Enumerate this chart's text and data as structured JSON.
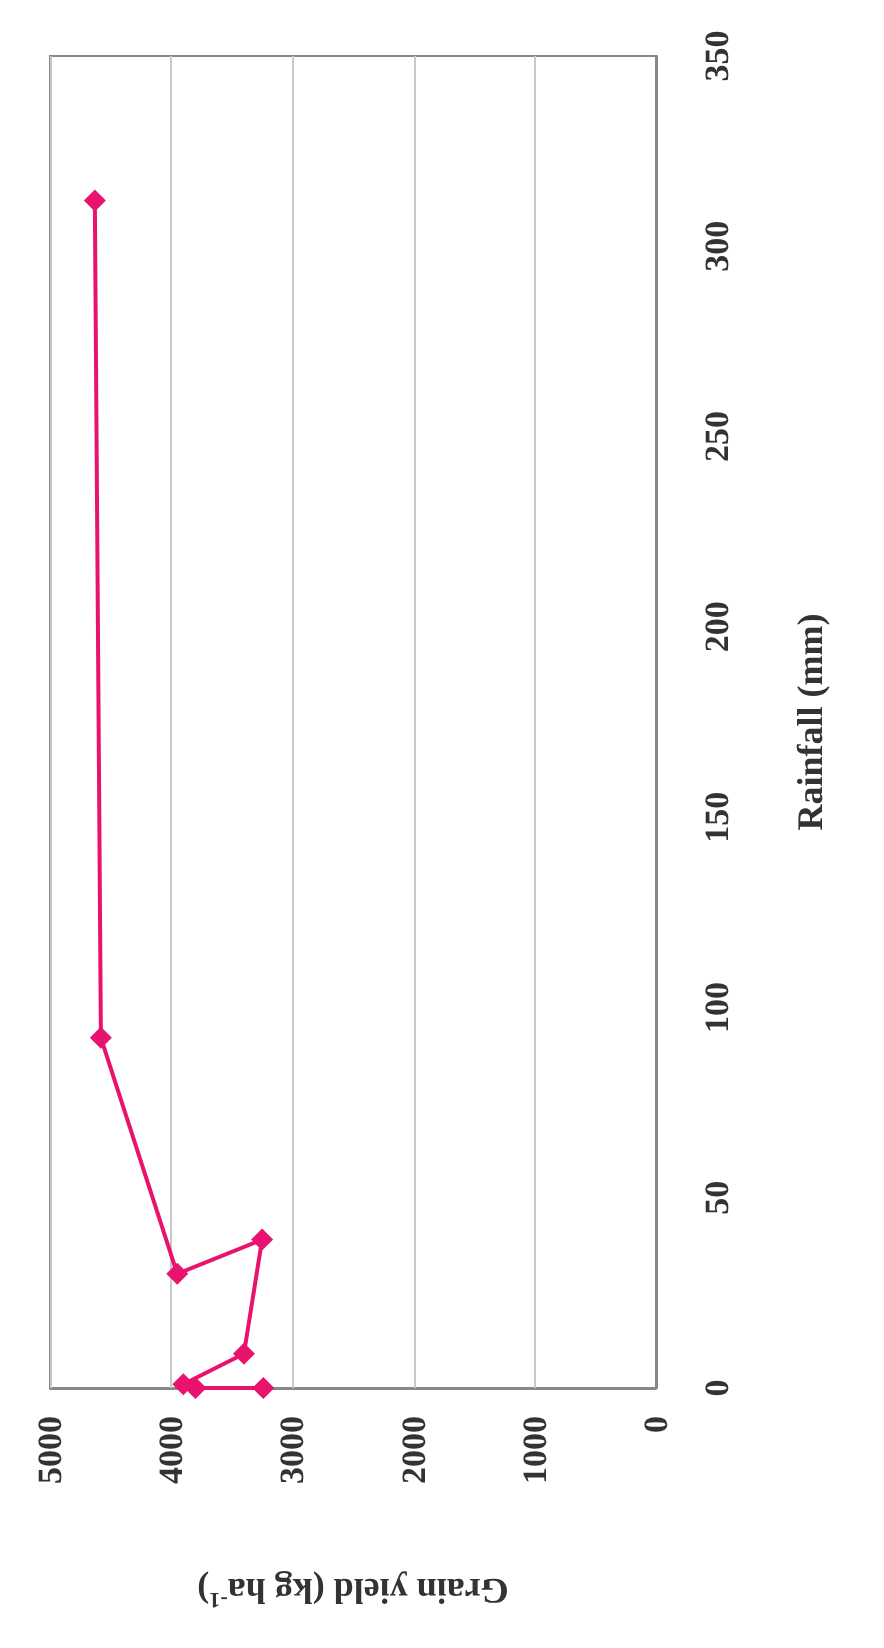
{
  "chart_data": {
    "type": "line",
    "xlabel": "Grain yield (kg ha$^{-1}$)",
    "ylabel": "Rainfall (mm)",
    "x": [
      3240,
      3800,
      3900,
      3400,
      3250,
      3950,
      4580,
      4630
    ],
    "series": [
      {
        "color": "#e8136e",
        "values": [
          0,
          0,
          1,
          9,
          39,
          30,
          92,
          312
        ]
      }
    ],
    "xlim": [
      5000,
      0
    ],
    "xticks": [
      5000,
      4000,
      3000,
      2000,
      1000,
      0
    ],
    "ylim": [
      0,
      350
    ],
    "yticks": [
      0,
      50,
      100,
      150,
      200,
      250,
      300,
      350
    ],
    "grid": "x",
    "marker": "diamond",
    "line_style": "solid"
  }
}
